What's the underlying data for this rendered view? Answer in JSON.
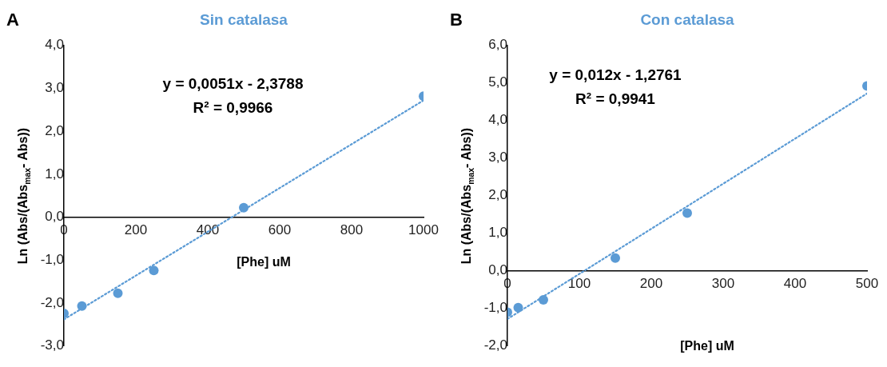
{
  "chart_data": [
    {
      "type": "scatter",
      "title": "Sin catalasa",
      "xlabel": "[Phe] uM",
      "ylabel": "Ln (Abs/(Abs$_{max}$- Abs))",
      "annotations": [
        "A",
        "y = 0,0051x - 2,3788",
        "R² = 0,9966"
      ],
      "series": [
        {
          "type": "scatter",
          "color": "#5b9bd5",
          "marker": "circle",
          "x": [
            0,
            50,
            150,
            250,
            500,
            1000
          ],
          "values": [
            -2.24,
            -2.07,
            -1.77,
            -1.24,
            0.22,
            2.82
          ]
        },
        {
          "type": "line",
          "color": "#5b9bd5",
          "marker": "none",
          "line_style": "dotted",
          "x": [
            0,
            1000
          ],
          "values": [
            -2.38,
            2.72
          ]
        }
      ],
      "xlim": [
        0,
        1000
      ],
      "xticks": [
        0,
        200,
        400,
        600,
        800,
        1000
      ],
      "ylim": [
        -3,
        4
      ],
      "yticks": [
        {
          "value": -3,
          "label": "-3,0"
        },
        {
          "value": -2,
          "label": "-2,0"
        },
        {
          "value": -1,
          "label": "-1,0"
        },
        {
          "value": 0,
          "label": "0,0"
        },
        {
          "value": 1,
          "label": "1,0"
        },
        {
          "value": 2,
          "label": "2,0"
        },
        {
          "value": 3,
          "label": "3,0"
        },
        {
          "value": 4,
          "label": "4,0"
        }
      ],
      "grid": false
    },
    {
      "type": "scatter",
      "title": "Con catalasa",
      "xlabel": "[Phe] uM",
      "ylabel": "Ln (Abs/(Abs$_{max}$- Abs))",
      "annotations": [
        "B",
        "y = 0,012x - 1,2761",
        "R² = 0,9941"
      ],
      "series": [
        {
          "type": "scatter",
          "color": "#5b9bd5",
          "marker": "circle",
          "x": [
            0,
            15,
            50,
            150,
            250,
            500
          ],
          "values": [
            -1.1,
            -0.98,
            -0.77,
            0.34,
            1.54,
            4.92
          ]
        },
        {
          "type": "line",
          "color": "#5b9bd5",
          "marker": "none",
          "line_style": "dotted",
          "x": [
            0,
            500
          ],
          "values": [
            -1.28,
            4.72
          ]
        }
      ],
      "xlim": [
        0,
        500
      ],
      "xticks": [
        0,
        100,
        200,
        300,
        400,
        500
      ],
      "ylim": [
        -2,
        6
      ],
      "yticks": [
        {
          "value": -2,
          "label": "-2,0"
        },
        {
          "value": -1,
          "label": "-1,0"
        },
        {
          "value": 0,
          "label": "0,0"
        },
        {
          "value": 1,
          "label": "1,0"
        },
        {
          "value": 2,
          "label": "2,0"
        },
        {
          "value": 3,
          "label": "3,0"
        },
        {
          "value": 4,
          "label": "4,0"
        },
        {
          "value": 5,
          "label": "5,0"
        },
        {
          "value": 6,
          "label": "6,0"
        }
      ],
      "grid": false
    }
  ]
}
